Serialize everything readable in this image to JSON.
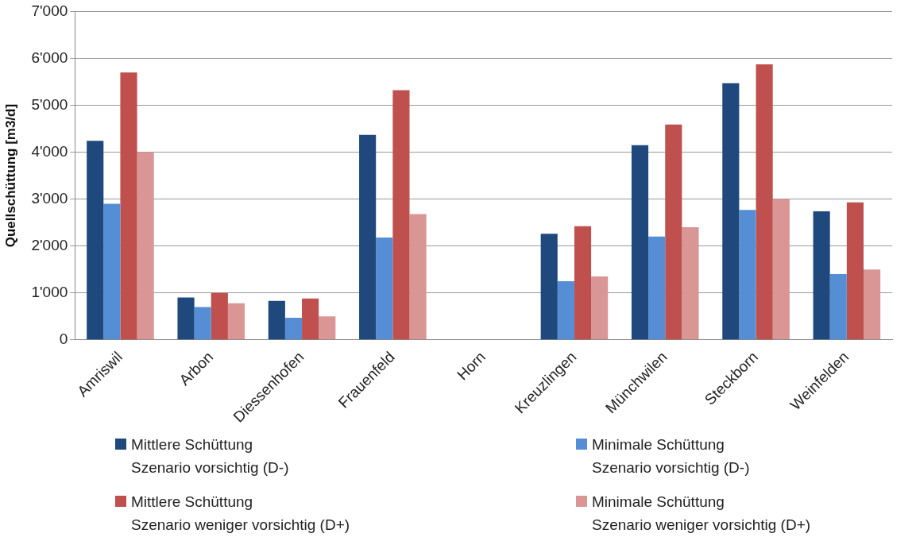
{
  "chart_data": {
    "type": "bar",
    "ylabel": "Quellschüttung [m3/d]",
    "categories": [
      "Amriswil",
      "Arbon",
      "Diessenhofen",
      "Frauenfeld",
      "Horn",
      "Kreuzlingen",
      "Münchwilen",
      "Steckborn",
      "Weinfelden"
    ],
    "series": [
      {
        "name": "Mittlere Schüttung\nSzenario vorsichtig (D-)",
        "color": "#1f497d",
        "values": [
          4240,
          900,
          830,
          4370,
          0,
          2260,
          4150,
          5470,
          2740
        ]
      },
      {
        "name": "Minimale Schüttung\nSzenario vorsichtig (D-)",
        "color": "#558ed5",
        "values": [
          2900,
          700,
          470,
          2180,
          0,
          1250,
          2200,
          2770,
          1400
        ]
      },
      {
        "name": "Mittlere Schüttung\nSzenario weniger vorsichtig (D+)",
        "color": "#c0504d",
        "values": [
          5700,
          1000,
          880,
          5320,
          0,
          2420,
          4590,
          5870,
          2930
        ]
      },
      {
        "name": "Minimale Schüttung\nSzenario weniger vorsichtig (D+)",
        "color": "#d99694",
        "values": [
          4000,
          780,
          500,
          2680,
          0,
          1350,
          2400,
          3000,
          1500
        ]
      }
    ],
    "ylim": [
      0,
      7000
    ],
    "yticks": [
      {
        "value": 0,
        "label": "0"
      },
      {
        "value": 1000,
        "label": "1'000"
      },
      {
        "value": 2000,
        "label": "2'000"
      },
      {
        "value": 3000,
        "label": "3'000"
      },
      {
        "value": 4000,
        "label": "4'000"
      },
      {
        "value": 5000,
        "label": "5'000"
      },
      {
        "value": 6000,
        "label": "6'000"
      },
      {
        "value": 7000,
        "label": "7'000"
      }
    ],
    "grid": "y",
    "legend": "bottom"
  }
}
